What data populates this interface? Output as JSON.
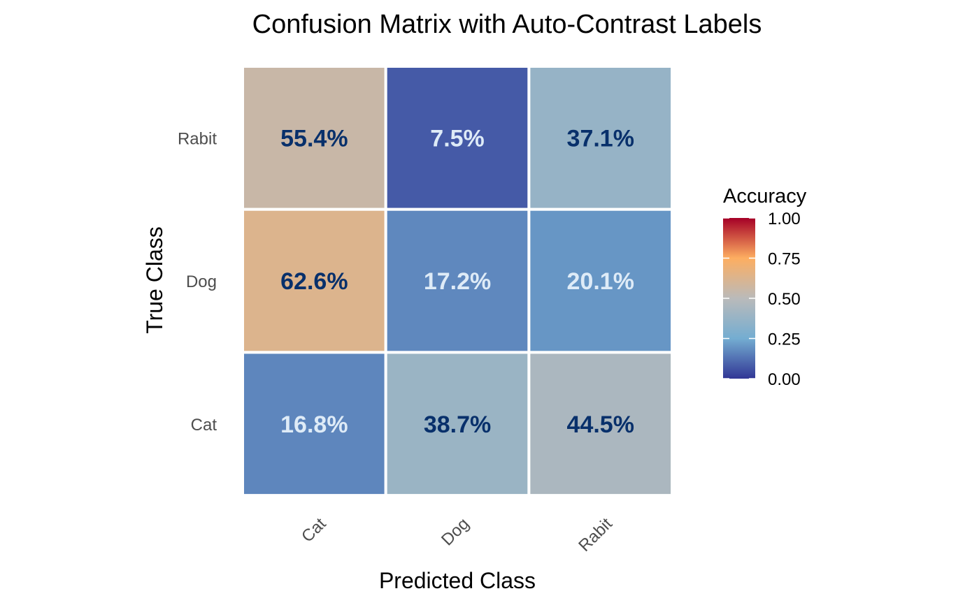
{
  "chart_data": {
    "type": "heatmap",
    "title": "Confusion Matrix with Auto-Contrast Labels",
    "xlabel": "Predicted Class",
    "ylabel": "True Class",
    "x_categories": [
      "Cat",
      "Dog",
      "Rabit"
    ],
    "y_categories": [
      "Cat",
      "Dog",
      "Rabit"
    ],
    "cells": [
      {
        "true": "Rabit",
        "predicted": "Cat",
        "value": 0.554,
        "label": "55.4%"
      },
      {
        "true": "Rabit",
        "predicted": "Dog",
        "value": 0.075,
        "label": "7.5%"
      },
      {
        "true": "Rabit",
        "predicted": "Rabit",
        "value": 0.371,
        "label": "37.1%"
      },
      {
        "true": "Dog",
        "predicted": "Cat",
        "value": 0.626,
        "label": "62.6%"
      },
      {
        "true": "Dog",
        "predicted": "Dog",
        "value": 0.172,
        "label": "17.2%"
      },
      {
        "true": "Dog",
        "predicted": "Rabit",
        "value": 0.201,
        "label": "20.1%"
      },
      {
        "true": "Cat",
        "predicted": "Cat",
        "value": 0.168,
        "label": "16.8%"
      },
      {
        "true": "Cat",
        "predicted": "Dog",
        "value": 0.387,
        "label": "38.7%"
      },
      {
        "true": "Cat",
        "predicted": "Rabit",
        "value": 0.445,
        "label": "44.5%"
      }
    ],
    "colorbar": {
      "title": "Accuracy",
      "range": [
        0,
        1
      ],
      "ticks": [
        {
          "value": 1.0,
          "label": "1.00"
        },
        {
          "value": 0.75,
          "label": "0.75"
        },
        {
          "value": 0.5,
          "label": "0.50"
        },
        {
          "value": 0.25,
          "label": "0.25"
        },
        {
          "value": 0.0,
          "label": "0.00"
        }
      ],
      "color_stops": [
        {
          "value": 0.0,
          "color": "#313695"
        },
        {
          "value": 0.25,
          "color": "#74add1"
        },
        {
          "value": 0.5,
          "color": "#bababa"
        },
        {
          "value": 0.75,
          "color": "#fdae61"
        },
        {
          "value": 1.0,
          "color": "#a50026"
        }
      ]
    },
    "label_colors": {
      "dark": "#08306b",
      "light": "#deebf7"
    },
    "legend_position": "right",
    "grid": false
  }
}
